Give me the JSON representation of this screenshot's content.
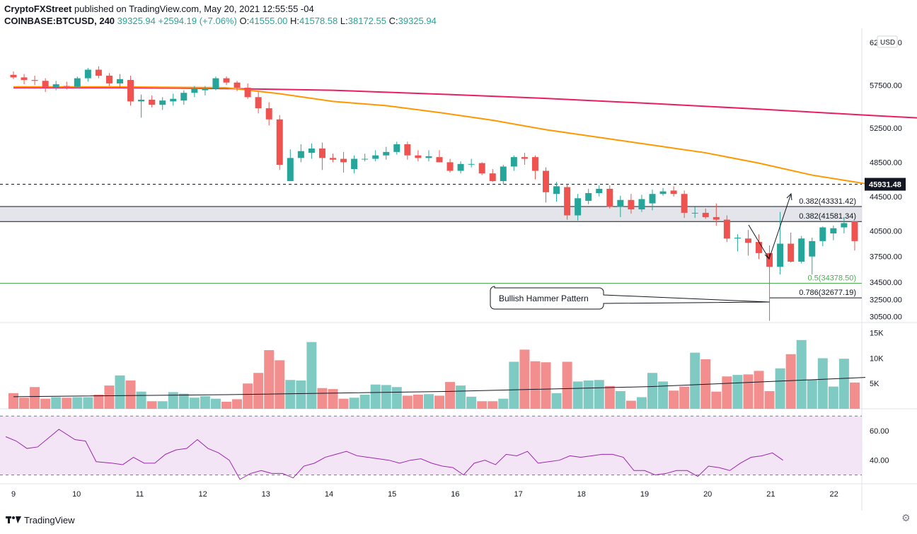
{
  "header": {
    "author": "CryptoFXStreet",
    "published_text": "published on TradingView.com, May 20, 2021 12:55:55 -04",
    "symbol": "COINBASE:BTCUSD, 240",
    "last_price": "39325.94",
    "change": "+2594.19 (+7.06%)",
    "o_label": "O:",
    "o_value": "41555.00",
    "h_label": "H:",
    "h_value": "41578.58",
    "l_label": "L:",
    "l_value": "38172.55",
    "c_label": "C:",
    "c_value": "39325.94"
  },
  "footer": {
    "brand": "TradingView"
  },
  "colors": {
    "up": "#26a69a",
    "down": "#ef5350",
    "vol_up": "#7fcbc3",
    "vol_down": "#f28f8e",
    "sma_slow": "#e91e63",
    "sma_fast": "#ff9800",
    "rsi_line": "#9c27b0",
    "rsi_band": "#f3e5f5",
    "fib_green": "#4caf50"
  },
  "chart_data": {
    "type": "candlestick",
    "currency": "USD",
    "y_axis_ticks": [
      "30500.00",
      "32500.00",
      "34500.00",
      "37500.00",
      "40500.00",
      "44500.00",
      "48500.00",
      "52500.00",
      "57500.00",
      "62500.00"
    ],
    "x_axis_ticks": [
      "9",
      "10",
      "11",
      "12",
      "13",
      "14",
      "15",
      "16",
      "17",
      "18",
      "19",
      "20",
      "21",
      "22"
    ],
    "ylim": [
      29800,
      63800
    ],
    "price_label": "45931.48",
    "candles": [
      [
        58700,
        59100,
        58200,
        58400
      ],
      [
        58400,
        58800,
        57600,
        58100
      ],
      [
        58100,
        58600,
        57500,
        58000
      ],
      [
        58000,
        58300,
        56700,
        57200
      ],
      [
        57200,
        58000,
        56900,
        57600
      ],
      [
        57400,
        57900,
        57000,
        57300
      ],
      [
        57300,
        58500,
        57100,
        58300
      ],
      [
        58300,
        59500,
        57900,
        59300
      ],
      [
        59300,
        59700,
        58300,
        58600
      ],
      [
        58600,
        58900,
        57400,
        57700
      ],
      [
        57700,
        58800,
        57200,
        58200
      ],
      [
        58100,
        58600,
        55100,
        55600
      ],
      [
        55600,
        56400,
        53700,
        55800
      ],
      [
        55800,
        56300,
        54900,
        55200
      ],
      [
        55200,
        56100,
        54600,
        55700
      ],
      [
        55600,
        56500,
        55100,
        55900
      ],
      [
        55700,
        56900,
        55200,
        56600
      ],
      [
        56600,
        57400,
        56100,
        57100
      ],
      [
        56900,
        57400,
        56300,
        57100
      ],
      [
        57100,
        58500,
        56900,
        58300
      ],
      [
        58300,
        58500,
        57500,
        57800
      ],
      [
        57800,
        58000,
        56800,
        57200
      ],
      [
        57200,
        57700,
        55900,
        56100
      ],
      [
        56100,
        56700,
        54200,
        54800
      ],
      [
        54800,
        55500,
        52800,
        53500
      ],
      [
        53500,
        54000,
        47600,
        48200
      ],
      [
        46300,
        50000,
        46300,
        49000
      ],
      [
        49000,
        50600,
        48500,
        49800
      ],
      [
        49600,
        50700,
        48900,
        50100
      ],
      [
        50100,
        50800,
        47600,
        49000
      ],
      [
        49000,
        49500,
        48500,
        48800
      ],
      [
        48900,
        49700,
        47300,
        48500
      ],
      [
        47700,
        49300,
        47200,
        48900
      ],
      [
        48900,
        49500,
        48600,
        48900
      ],
      [
        48900,
        49900,
        48600,
        49300
      ],
      [
        49300,
        50300,
        48800,
        49700
      ],
      [
        49700,
        50900,
        49400,
        50600
      ],
      [
        50600,
        50900,
        48800,
        49300
      ],
      [
        49300,
        49900,
        48600,
        49000
      ],
      [
        49000,
        49900,
        48600,
        49200
      ],
      [
        49100,
        49900,
        48500,
        48500
      ],
      [
        48500,
        48900,
        47300,
        47500
      ],
      [
        47500,
        48600,
        47200,
        48300
      ],
      [
        48300,
        48900,
        47900,
        48300
      ],
      [
        48400,
        48500,
        47000,
        47200
      ],
      [
        47200,
        47700,
        46200,
        46300
      ],
      [
        46300,
        48200,
        45900,
        48000
      ],
      [
        48000,
        49300,
        47500,
        49100
      ],
      [
        49100,
        49600,
        48200,
        48900
      ],
      [
        49100,
        49300,
        46500,
        47500
      ],
      [
        47500,
        47900,
        43800,
        45000
      ],
      [
        44800,
        46200,
        43900,
        45700
      ],
      [
        45600,
        46000,
        41800,
        42300
      ],
      [
        42300,
        44800,
        41700,
        44300
      ],
      [
        44000,
        45400,
        43600,
        44900
      ],
      [
        44900,
        45800,
        44500,
        45400
      ],
      [
        45400,
        45800,
        43100,
        43300
      ],
      [
        43300,
        44600,
        42100,
        44100
      ],
      [
        44100,
        44800,
        42500,
        43000
      ],
      [
        43000,
        44700,
        42700,
        44200
      ],
      [
        43700,
        45300,
        42900,
        44800
      ],
      [
        44800,
        45500,
        44600,
        45100
      ],
      [
        45200,
        45700,
        44500,
        44800
      ],
      [
        44800,
        45200,
        42000,
        42600
      ],
      [
        42600,
        43300,
        42000,
        42600
      ],
      [
        42600,
        43100,
        41900,
        42100
      ],
      [
        42100,
        43700,
        41100,
        41800
      ],
      [
        41800,
        42300,
        39200,
        39600
      ],
      [
        39600,
        40100,
        38100,
        39700
      ],
      [
        39600,
        40600,
        37600,
        39100
      ],
      [
        39200,
        40100,
        37200,
        37900
      ],
      [
        37900,
        38800,
        30000,
        36300
      ],
      [
        36300,
        42700,
        35400,
        39000
      ],
      [
        39000,
        40300,
        36800,
        36900
      ],
      [
        36900,
        39900,
        36700,
        39600
      ],
      [
        37500,
        39700,
        35400,
        39300
      ],
      [
        39300,
        41000,
        38700,
        40900
      ],
      [
        40200,
        41100,
        39400,
        40800
      ],
      [
        40900,
        42100,
        40200,
        41400
      ],
      [
        41600,
        41600,
        38200,
        39300
      ]
    ],
    "sma_slow_points": [
      [
        0,
        57200
      ],
      [
        10,
        57200
      ],
      [
        20,
        57100
      ],
      [
        30,
        56900
      ],
      [
        40,
        56450
      ],
      [
        50,
        55950
      ],
      [
        60,
        55350
      ],
      [
        70,
        54700
      ],
      [
        80,
        54000
      ],
      [
        86,
        53600
      ]
    ],
    "sma_fast_points": [
      [
        0,
        57300
      ],
      [
        10,
        57300
      ],
      [
        20,
        57200
      ],
      [
        25,
        56500
      ],
      [
        30,
        55600
      ],
      [
        35,
        55100
      ],
      [
        40,
        54300
      ],
      [
        45,
        53400
      ],
      [
        50,
        52300
      ],
      [
        55,
        51400
      ],
      [
        60,
        50500
      ],
      [
        65,
        49600
      ],
      [
        70,
        48400
      ],
      [
        75,
        47000
      ],
      [
        80,
        46000
      ]
    ],
    "volume_ticks": [
      "15K",
      "10K",
      "5K"
    ],
    "volume_max": 16500,
    "volumes": [
      3100,
      2200,
      4300,
      2000,
      2300,
      2200,
      2300,
      2300,
      2800,
      4600,
      6600,
      5600,
      3400,
      1500,
      1500,
      3300,
      3000,
      2200,
      2500,
      2000,
      1400,
      1900,
      5000,
      7100,
      11600,
      9600,
      5700,
      5600,
      13200,
      4100,
      3900,
      2000,
      2200,
      2800,
      4800,
      4700,
      4300,
      2600,
      2800,
      2900,
      2600,
      5300,
      4600,
      2400,
      1500,
      1500,
      2000,
      9300,
      11700,
      9400,
      9200,
      3100,
      9300,
      5400,
      5600,
      5700,
      4500,
      3500,
      1600,
      2300,
      7100,
      5400,
      3600,
      4400,
      11100,
      9800,
      3400,
      6400,
      6700,
      6800,
      7500,
      3500,
      8000,
      10800,
      13600,
      5800,
      10000,
      4400,
      9900,
      5200
    ],
    "volume_ma_points": [
      [
        0,
        2400
      ],
      [
        20,
        2800
      ],
      [
        40,
        3400
      ],
      [
        60,
        4400
      ],
      [
        80,
        6200
      ]
    ],
    "rsi_ticks": [
      "60.00",
      "40.00"
    ],
    "rsi_band": [
      30,
      70
    ],
    "rsi_ylim": [
      24,
      73
    ],
    "rsi_points": [
      [
        0,
        56
      ],
      [
        2,
        53
      ],
      [
        4,
        48
      ],
      [
        6,
        49
      ],
      [
        8,
        55
      ],
      [
        10,
        61
      ],
      [
        13,
        54
      ],
      [
        15,
        53
      ],
      [
        17,
        39
      ],
      [
        20,
        38
      ],
      [
        22,
        37
      ],
      [
        24,
        42
      ],
      [
        26,
        38
      ],
      [
        28,
        38
      ],
      [
        30,
        44
      ],
      [
        32,
        47
      ],
      [
        34,
        48
      ],
      [
        36,
        54
      ],
      [
        38,
        48
      ],
      [
        40,
        45
      ],
      [
        42,
        40
      ],
      [
        44,
        27
      ],
      [
        46,
        31
      ],
      [
        48,
        33
      ],
      [
        50,
        31
      ],
      [
        52,
        31
      ],
      [
        54,
        28
      ],
      [
        56,
        36
      ],
      [
        58,
        38
      ],
      [
        60,
        42
      ],
      [
        62,
        44
      ],
      [
        64,
        46
      ],
      [
        66,
        43
      ],
      [
        68,
        42
      ],
      [
        70,
        41
      ],
      [
        72,
        40
      ],
      [
        74,
        38
      ],
      [
        76,
        40
      ],
      [
        78,
        41
      ],
      [
        80,
        38
      ],
      [
        82,
        36
      ],
      [
        84,
        35
      ],
      [
        86,
        30
      ],
      [
        88,
        38
      ],
      [
        90,
        40
      ],
      [
        92,
        37
      ],
      [
        94,
        44
      ],
      [
        96,
        43
      ],
      [
        98,
        46
      ],
      [
        100,
        38
      ],
      [
        102,
        39
      ],
      [
        104,
        40
      ],
      [
        106,
        43
      ],
      [
        108,
        42
      ],
      [
        110,
        43
      ],
      [
        112,
        44
      ],
      [
        114,
        44
      ],
      [
        116,
        42
      ],
      [
        118,
        33
      ],
      [
        120,
        33
      ],
      [
        122,
        30
      ],
      [
        124,
        31
      ],
      [
        126,
        33
      ],
      [
        128,
        33
      ],
      [
        130,
        29
      ],
      [
        132,
        36
      ],
      [
        134,
        35
      ],
      [
        136,
        33
      ],
      [
        138,
        38
      ],
      [
        140,
        42
      ],
      [
        142,
        43
      ],
      [
        144,
        45
      ],
      [
        146,
        40
      ]
    ],
    "fib_levels": [
      {
        "label": "0.382(43331.42)",
        "price": 43331.42
      },
      {
        "label": "0.382(41581.34)",
        "price": 41581.34
      },
      {
        "label": "0.5(34378.50)",
        "price": 34378.5
      },
      {
        "label": "0.786(32677.19)",
        "price": 32677.19
      }
    ],
    "annotation": "Bullish Hammer Pattern"
  }
}
